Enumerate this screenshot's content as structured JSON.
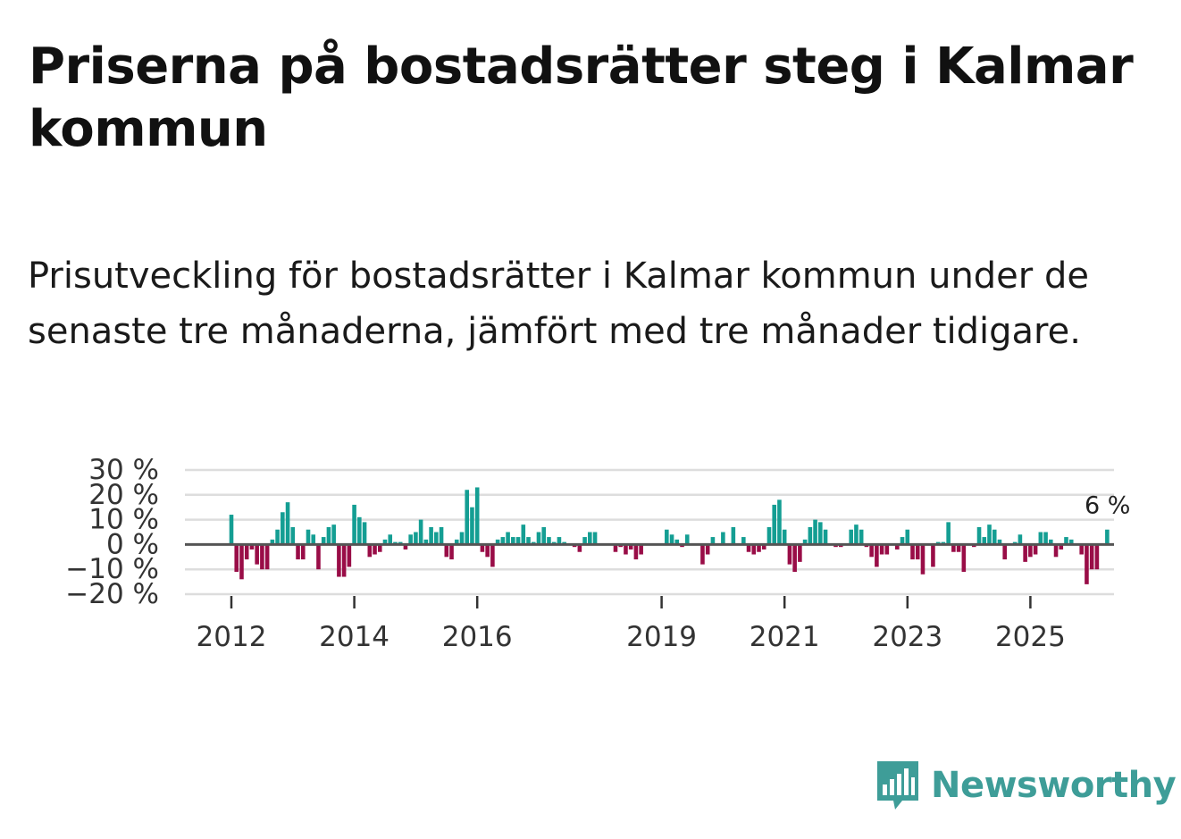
{
  "header": {
    "title": "Priserna på bostadsrätter steg i Kalmar kommun",
    "subtitle": "Prisutveckling för bostadsrätter i Kalmar kommun under de senaste tre månaderna, jämfört med tre månader tidigare."
  },
  "chart_data": {
    "type": "bar",
    "title": "Priserna på bostadsrätter steg i Kalmar kommun",
    "subtitle": "Prisutveckling för bostadsrätter i Kalmar kommun under de senaste tre månaderna, jämfört med tre månader tidigare.",
    "xlabel": "",
    "ylabel": "",
    "ylim": [
      -20,
      30
    ],
    "y_ticks": [
      30,
      20,
      10,
      0,
      -10,
      -20
    ],
    "y_tick_labels": [
      "30 %",
      "20 %",
      "10 %",
      "0 %",
      "−10 %",
      "−20 %"
    ],
    "x_ticks": [
      2012,
      2014,
      2016,
      2019,
      2021,
      2023,
      2025
    ],
    "x_tick_labels": [
      "2012",
      "2014",
      "2016",
      "2019",
      "2021",
      "2023",
      "2025"
    ],
    "x_start": 2012.0,
    "x_step": 0.08333,
    "values": [
      12,
      -11,
      -14,
      -6,
      -2,
      -8,
      -10,
      -10,
      2,
      6,
      13,
      17,
      7,
      -6,
      -6,
      6,
      4,
      -10,
      3,
      7,
      8,
      -13,
      -13,
      -9,
      16,
      11,
      9,
      -5,
      -4,
      -3,
      2,
      4,
      1,
      1,
      -2,
      4,
      5,
      10,
      2,
      7,
      5,
      7,
      -5,
      -6,
      2,
      5,
      22,
      15,
      23,
      -3,
      -5,
      -9,
      2,
      3,
      5,
      3,
      3,
      8,
      3,
      1,
      5,
      7,
      3,
      1,
      3,
      1,
      0,
      -1,
      -3,
      3,
      5,
      5,
      0,
      0,
      0,
      -3,
      -1,
      -4,
      -2,
      -6,
      -4,
      0,
      0,
      0,
      0,
      6,
      4,
      2,
      -1,
      4,
      0,
      0,
      -8,
      -4,
      3,
      0,
      5,
      0,
      7,
      0,
      3,
      -3,
      -4,
      -3,
      -2,
      7,
      16,
      18,
      6,
      -8,
      -11,
      -7,
      2,
      7,
      10,
      9,
      6,
      0,
      -1,
      -1,
      0,
      6,
      8,
      6,
      -1,
      -5,
      -9,
      -4,
      -4,
      0,
      -2,
      3,
      6,
      -6,
      -6,
      -12,
      0,
      -9,
      1,
      1,
      9,
      -3,
      -3,
      -11,
      0,
      -1,
      7,
      3,
      8,
      6,
      2,
      -6,
      0,
      1,
      4,
      -7,
      -5,
      -4,
      5,
      5,
      2,
      -5,
      -2,
      3,
      2,
      0,
      -4,
      -16,
      -10,
      -10,
      0,
      6
    ],
    "last_value_label": "6 %",
    "colors": {
      "positive": "#149e93",
      "negative": "#990d47",
      "zero_line": "#555555",
      "grid": "#dddddd"
    }
  },
  "brand": {
    "name": "Newsworthy",
    "color": "#3e9d98"
  }
}
